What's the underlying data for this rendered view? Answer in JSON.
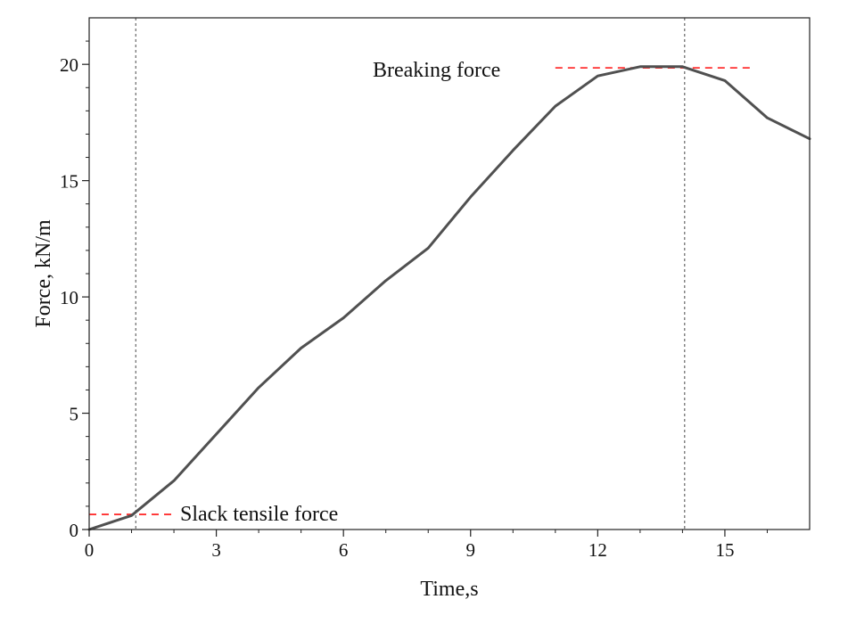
{
  "chart_data": {
    "type": "line",
    "title": "",
    "xlabel": "Time,s",
    "ylabel": "Force, kN/m",
    "xlim": [
      0,
      17
    ],
    "ylim": [
      0,
      22
    ],
    "x_ticks": [
      0,
      3,
      6,
      9,
      12,
      15
    ],
    "y_ticks": [
      0,
      5,
      10,
      15,
      20
    ],
    "x_tick_labels": [
      "0",
      "3",
      "6",
      "9",
      "12",
      "15"
    ],
    "y_tick_labels": [
      "0",
      "5",
      "10",
      "15",
      "20"
    ],
    "grid": false,
    "legend": "none",
    "series": [
      {
        "x": [
          0,
          1,
          2,
          3,
          4,
          5,
          6,
          7,
          8,
          9,
          10,
          11,
          12,
          13,
          14,
          15,
          16,
          17
        ],
        "values": [
          0,
          0.6,
          2.1,
          4.1,
          6.1,
          7.8,
          9.1,
          10.7,
          12.1,
          14.3,
          16.3,
          18.2,
          19.5,
          19.9,
          19.9,
          19.3,
          17.7,
          16.8
        ],
        "color": "#505050"
      }
    ],
    "annotations": [
      {
        "text": "Breaking force",
        "type": "hline",
        "y": 19.85,
        "x_range": [
          11,
          15.6
        ],
        "color": "#ff3030"
      },
      {
        "text": "Slack tensile force",
        "type": "hline",
        "y": 0.65,
        "x_range": [
          0,
          2
        ],
        "color": "#ff3030"
      }
    ],
    "vlines": [
      {
        "x": 1.1,
        "color": "#666666"
      },
      {
        "x": 14.05,
        "color": "#666666"
      }
    ]
  }
}
